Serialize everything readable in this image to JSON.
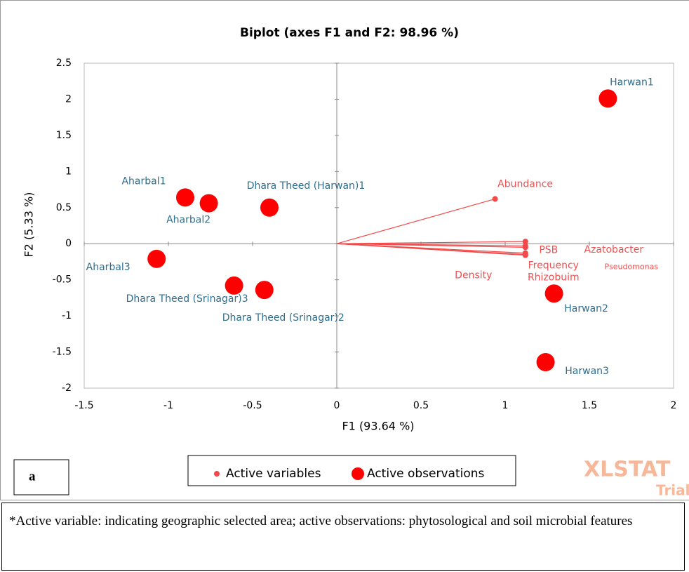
{
  "chart_data": {
    "type": "scatter",
    "title": "Biplot (axes F1 and F2: 98.96 %)",
    "xlabel": "F1 (93.64 %)",
    "ylabel": "F2 (5.33 %)",
    "xlim": [
      -1.5,
      2
    ],
    "ylim": [
      -2,
      2.5
    ],
    "xticks": [
      -1.5,
      -1,
      -0.5,
      0,
      0.5,
      1,
      1.5,
      2
    ],
    "yticks": [
      -2,
      -1.5,
      -1,
      -0.5,
      0,
      0.5,
      1,
      1.5,
      2,
      2.5
    ],
    "series": [
      {
        "name": "Active variables",
        "color": "#f24a4a",
        "label_color": "#f05050",
        "labels": [
          "Abundance",
          "Azatobacter",
          "PSB",
          "Pseudomonas",
          "Frequency",
          "Rhizobuim",
          "Density"
        ],
        "x": [
          0.94,
          1.12,
          1.12,
          1.12,
          1.12,
          1.12,
          1.12
        ],
        "values": [
          0.62,
          0.03,
          -0.03,
          -0.05,
          -0.13,
          -0.15,
          -0.16
        ]
      },
      {
        "name": "Active observations",
        "color": "#ff0000",
        "label_color": "#2f6e8e",
        "labels": [
          "Harwan1",
          "Aharbal1",
          "Aharbal2",
          "Dhara Theed (Harwan)1",
          "Aharbal3",
          "Dhara Theed (Srinagar)3",
          "Dhara Theed (Srinagar)2",
          "Harwan2",
          "Harwan3"
        ],
        "x": [
          1.61,
          -0.9,
          -0.76,
          -0.4,
          -1.07,
          -0.61,
          -0.43,
          1.29,
          1.24
        ],
        "values": [
          2.01,
          0.64,
          0.56,
          0.5,
          -0.21,
          -0.58,
          -0.64,
          -0.69,
          -1.64
        ]
      }
    ],
    "panel_label": "a",
    "watermark": "XLSTAT",
    "watermark_sub": "Trial"
  },
  "footnote": "*Active variable: indicating geographic selected area; active observations: phytosological and soil microbial features"
}
